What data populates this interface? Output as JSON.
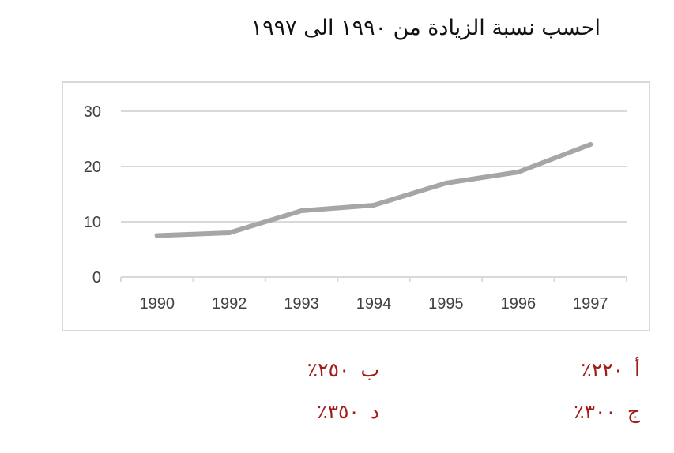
{
  "question": "احسب نسبة الزيادة من ١٩٩٠ الى ١٩٩٧",
  "options": {
    "a": {
      "letter": "أ",
      "value": "٢٢٠٪"
    },
    "b": {
      "letter": "ب",
      "value": "٢٥٠٪"
    },
    "c": {
      "letter": "ج",
      "value": "٣٠٠٪"
    },
    "d": {
      "letter": "د",
      "value": "٣٥٠٪"
    }
  },
  "colors": {
    "line": "#a6a6a6",
    "grid": "#d9d9d9",
    "axis_text": "#404040",
    "options_text": "#a01c1c"
  },
  "chart_data": {
    "type": "line",
    "categories": [
      "1990",
      "1992",
      "1993",
      "1994",
      "1995",
      "1996",
      "1997"
    ],
    "values": [
      7.5,
      8,
      12,
      13,
      17,
      19,
      24
    ],
    "title": "",
    "xlabel": "",
    "ylabel": "",
    "ylim": [
      0,
      30
    ],
    "yticks": [
      0,
      10,
      20,
      30
    ],
    "grid": true,
    "legend": "none"
  }
}
